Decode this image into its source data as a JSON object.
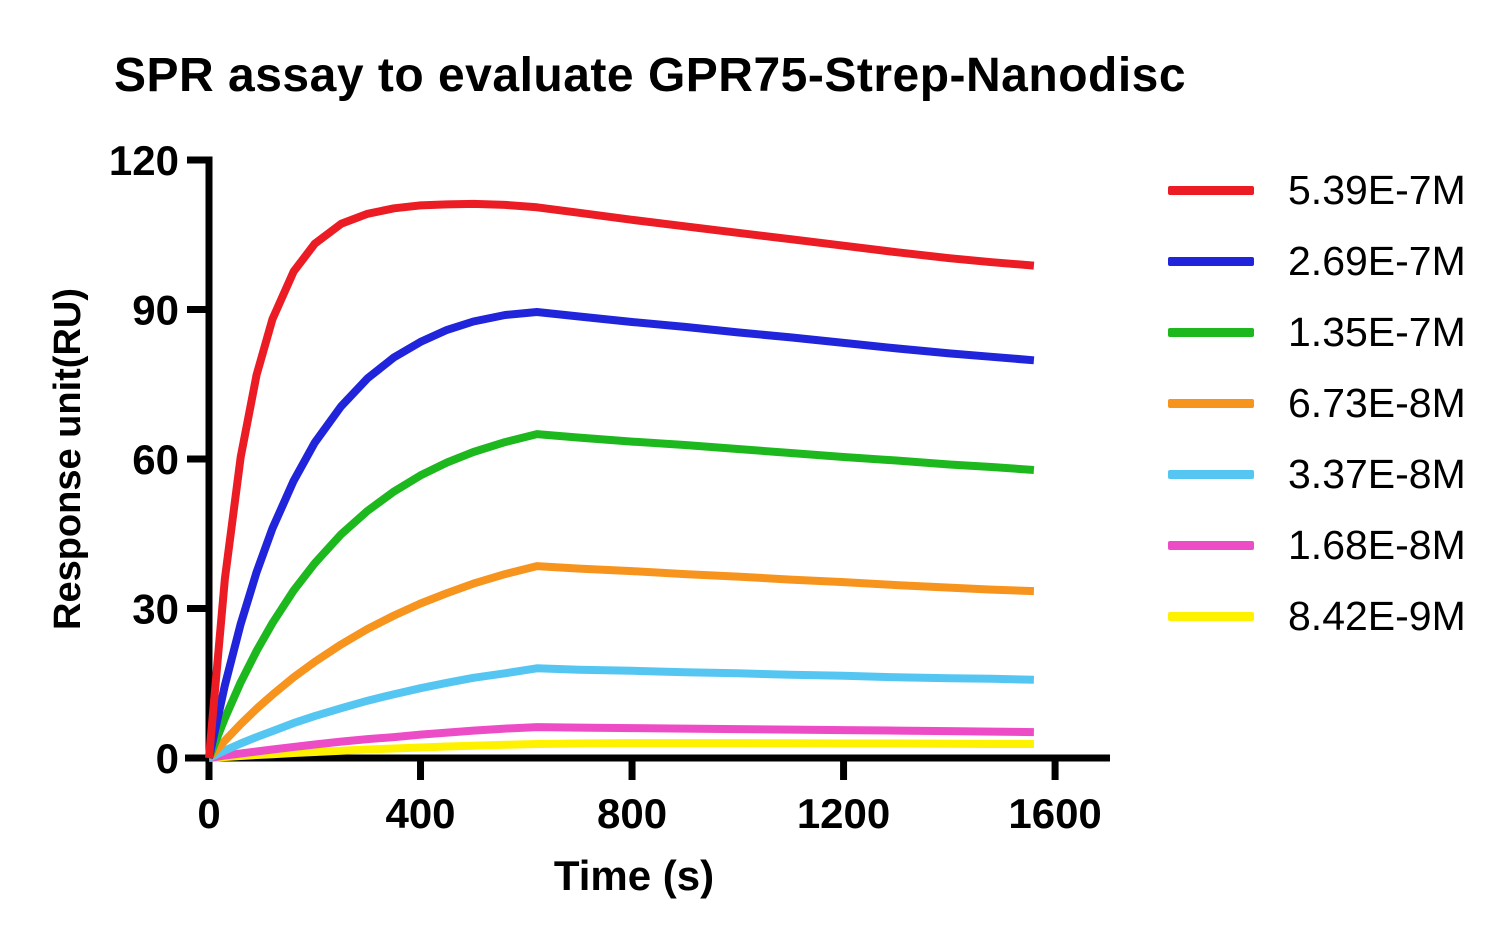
{
  "chart_data": {
    "type": "line",
    "title": "SPR assay to evaluate GPR75-Strep-Nanodisc",
    "xlabel": "Time (s)",
    "ylabel": "Response unit(RU)",
    "xlim": [
      0,
      1700
    ],
    "ylim": [
      0,
      120
    ],
    "xticks": [
      0,
      400,
      800,
      1200,
      1600
    ],
    "yticks": [
      0,
      30,
      60,
      90,
      120
    ],
    "grid": false,
    "legend_position": "right-outside",
    "axis_color": "#000000",
    "background_color": "#ffffff",
    "phases": {
      "association_end_s": 620,
      "curve_end_s": 1560
    },
    "series": [
      {
        "name": "5.39E-7M",
        "color": "#EC1C24",
        "points": [
          [
            0,
            0
          ],
          [
            30,
            36
          ],
          [
            60,
            60.4
          ],
          [
            90,
            76.9
          ],
          [
            120,
            88.1
          ],
          [
            160,
            97.6
          ],
          [
            200,
            103.2
          ],
          [
            250,
            107.2
          ],
          [
            300,
            109.2
          ],
          [
            350,
            110.3
          ],
          [
            400,
            110.9
          ],
          [
            450,
            111.1
          ],
          [
            500,
            111.2
          ],
          [
            560,
            111
          ],
          [
            620,
            110.5
          ],
          [
            700,
            109.4
          ],
          [
            800,
            108
          ],
          [
            900,
            106.7
          ],
          [
            1000,
            105.4
          ],
          [
            1100,
            104.1
          ],
          [
            1200,
            102.8
          ],
          [
            1300,
            101.5
          ],
          [
            1400,
            100.3
          ],
          [
            1480,
            99.5
          ],
          [
            1560,
            98.8
          ]
        ]
      },
      {
        "name": "2.69E-7M",
        "color": "#2024DB",
        "points": [
          [
            0,
            0
          ],
          [
            30,
            14.6
          ],
          [
            60,
            26.9
          ],
          [
            90,
            37.3
          ],
          [
            120,
            46.1
          ],
          [
            160,
            55.6
          ],
          [
            200,
            63.3
          ],
          [
            250,
            70.6
          ],
          [
            300,
            76.2
          ],
          [
            350,
            80.4
          ],
          [
            400,
            83.5
          ],
          [
            450,
            85.9
          ],
          [
            500,
            87.6
          ],
          [
            560,
            88.9
          ],
          [
            620,
            89.5
          ],
          [
            700,
            88.6
          ],
          [
            800,
            87.5
          ],
          [
            900,
            86.5
          ],
          [
            1000,
            85.4
          ],
          [
            1100,
            84.4
          ],
          [
            1200,
            83.3
          ],
          [
            1300,
            82.2
          ],
          [
            1400,
            81.2
          ],
          [
            1480,
            80.5
          ],
          [
            1560,
            79.8
          ]
        ]
      },
      {
        "name": "1.35E-7M",
        "color": "#1DB81D",
        "points": [
          [
            0,
            0
          ],
          [
            30,
            8
          ],
          [
            60,
            15.2
          ],
          [
            90,
            21.5
          ],
          [
            120,
            27.1
          ],
          [
            160,
            33.6
          ],
          [
            200,
            39.1
          ],
          [
            250,
            44.9
          ],
          [
            300,
            49.6
          ],
          [
            350,
            53.5
          ],
          [
            400,
            56.7
          ],
          [
            450,
            59.3
          ],
          [
            500,
            61.4
          ],
          [
            560,
            63.4
          ],
          [
            620,
            65
          ],
          [
            700,
            64.3
          ],
          [
            800,
            63.5
          ],
          [
            900,
            62.8
          ],
          [
            1000,
            62
          ],
          [
            1100,
            61.2
          ],
          [
            1200,
            60.4
          ],
          [
            1300,
            59.7
          ],
          [
            1400,
            58.9
          ],
          [
            1480,
            58.4
          ],
          [
            1560,
            57.8
          ]
        ]
      },
      {
        "name": "6.73E-8M",
        "color": "#F7941E",
        "points": [
          [
            0,
            0
          ],
          [
            30,
            3.5
          ],
          [
            60,
            6.8
          ],
          [
            90,
            9.9
          ],
          [
            120,
            12.7
          ],
          [
            160,
            16.2
          ],
          [
            200,
            19.3
          ],
          [
            250,
            22.8
          ],
          [
            300,
            25.9
          ],
          [
            350,
            28.6
          ],
          [
            400,
            31
          ],
          [
            450,
            33.1
          ],
          [
            500,
            35
          ],
          [
            560,
            36.9
          ],
          [
            620,
            38.5
          ],
          [
            700,
            38
          ],
          [
            800,
            37.5
          ],
          [
            900,
            36.9
          ],
          [
            1000,
            36.4
          ],
          [
            1100,
            35.8
          ],
          [
            1200,
            35.3
          ],
          [
            1300,
            34.7
          ],
          [
            1400,
            34.2
          ],
          [
            1480,
            33.8
          ],
          [
            1560,
            33.5
          ]
        ]
      },
      {
        "name": "3.37E-8M",
        "color": "#55C6F2",
        "points": [
          [
            0,
            0
          ],
          [
            30,
            1.5
          ],
          [
            60,
            2.9
          ],
          [
            90,
            4.2
          ],
          [
            120,
            5.4
          ],
          [
            160,
            7
          ],
          [
            200,
            8.4
          ],
          [
            250,
            10
          ],
          [
            300,
            11.5
          ],
          [
            350,
            12.8
          ],
          [
            400,
            14
          ],
          [
            450,
            15.1
          ],
          [
            500,
            16.1
          ],
          [
            560,
            17
          ],
          [
            620,
            18
          ],
          [
            700,
            17.7
          ],
          [
            800,
            17.5
          ],
          [
            900,
            17.2
          ],
          [
            1000,
            17
          ],
          [
            1100,
            16.7
          ],
          [
            1200,
            16.5
          ],
          [
            1300,
            16.2
          ],
          [
            1400,
            16
          ],
          [
            1480,
            15.9
          ],
          [
            1560,
            15.7
          ]
        ]
      },
      {
        "name": "1.68E-8M",
        "color": "#ED4CC7",
        "points": [
          [
            0,
            0
          ],
          [
            30,
            0.5
          ],
          [
            60,
            0.9
          ],
          [
            90,
            1.3
          ],
          [
            120,
            1.7
          ],
          [
            160,
            2.2
          ],
          [
            200,
            2.7
          ],
          [
            250,
            3.3
          ],
          [
            300,
            3.8
          ],
          [
            350,
            4.2
          ],
          [
            400,
            4.7
          ],
          [
            450,
            5.1
          ],
          [
            500,
            5.5
          ],
          [
            560,
            5.9
          ],
          [
            620,
            6.2
          ],
          [
            700,
            6.1
          ],
          [
            800,
            6
          ],
          [
            900,
            5.9
          ],
          [
            1000,
            5.8
          ],
          [
            1100,
            5.7
          ],
          [
            1200,
            5.6
          ],
          [
            1300,
            5.5
          ],
          [
            1400,
            5.4
          ],
          [
            1480,
            5.3
          ],
          [
            1560,
            5.2
          ]
        ]
      },
      {
        "name": "8.42E-9M",
        "color": "#FFF200",
        "points": [
          [
            0,
            0
          ],
          [
            30,
            0.2
          ],
          [
            60,
            0.4
          ],
          [
            90,
            0.6
          ],
          [
            120,
            0.75
          ],
          [
            160,
            1
          ],
          [
            200,
            1.2
          ],
          [
            250,
            1.45
          ],
          [
            300,
            1.7
          ],
          [
            350,
            1.9
          ],
          [
            400,
            2.1
          ],
          [
            450,
            2.3
          ],
          [
            500,
            2.45
          ],
          [
            560,
            2.65
          ],
          [
            620,
            2.8
          ],
          [
            700,
            2.9
          ],
          [
            800,
            3
          ],
          [
            900,
            3
          ],
          [
            1000,
            3
          ],
          [
            1100,
            2.95
          ],
          [
            1200,
            2.9
          ],
          [
            1300,
            2.9
          ],
          [
            1400,
            2.85
          ],
          [
            1480,
            2.8
          ],
          [
            1560,
            2.8
          ]
        ]
      }
    ]
  }
}
